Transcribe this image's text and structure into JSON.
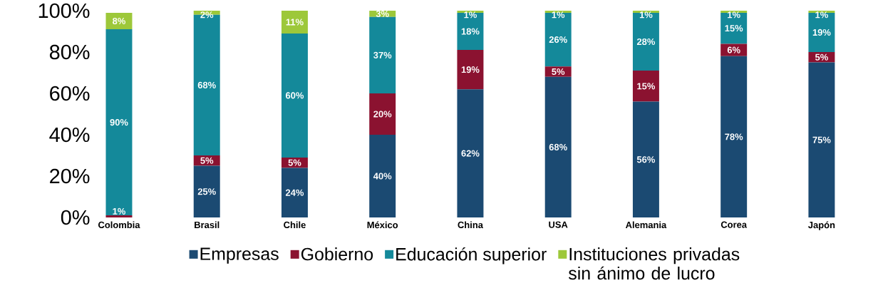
{
  "chart_data": {
    "type": "bar",
    "stacked": true,
    "categories": [
      "Colombia",
      "Brasil",
      "Chile",
      "México",
      "China",
      "USA",
      "Alemania",
      "Corea",
      "Japón"
    ],
    "series": [
      {
        "name": "Empresas",
        "color": "#1b4a72",
        "values": [
          null,
          25,
          24,
          40,
          62,
          68,
          56,
          78,
          75
        ],
        "value_labels": [
          null,
          "25%",
          "24%",
          "40%",
          "62%",
          "68%",
          "56%",
          "78%",
          "75%"
        ]
      },
      {
        "name": "Gobierno",
        "color": "#8b1230",
        "values": [
          1,
          5,
          5,
          20,
          19,
          5,
          15,
          6,
          5
        ],
        "value_labels": [
          "1%",
          "5%",
          "5%",
          "20%",
          "19%",
          "5%",
          "15%",
          "6%",
          "5%"
        ]
      },
      {
        "name": "Educación superior",
        "color": "#14899a",
        "values": [
          90,
          68,
          60,
          37,
          18,
          26,
          28,
          15,
          19
        ],
        "value_labels": [
          "90%",
          "68%",
          "60%",
          "37%",
          "18%",
          "26%",
          "28%",
          "15%",
          "19%"
        ]
      },
      {
        "name": "Instituciones privadas sin ánimo de lucro",
        "color": "#9dc83a",
        "values": [
          8,
          2,
          11,
          3,
          1,
          1,
          1,
          1,
          1
        ],
        "value_labels": [
          "8%",
          "2%",
          "11%",
          "3%",
          "1%",
          "1%",
          "1%",
          "1%",
          "1%"
        ]
      }
    ],
    "ylim": [
      0,
      100
    ],
    "yticks": [
      {
        "value": 0,
        "label": "0%"
      },
      {
        "value": 20,
        "label": "20%"
      },
      {
        "value": 40,
        "label": "40%"
      },
      {
        "value": 60,
        "label": "60%"
      },
      {
        "value": 80,
        "label": "80%"
      },
      {
        "value": 100,
        "label": "100%"
      }
    ],
    "grid": false,
    "legend": "bottom"
  }
}
